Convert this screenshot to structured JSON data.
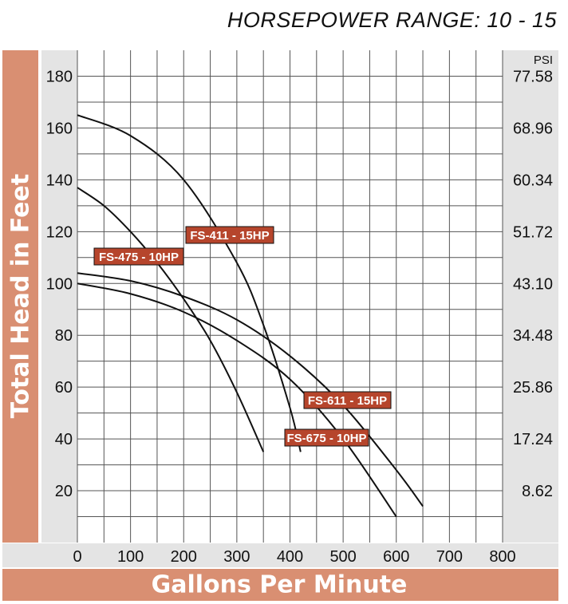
{
  "chart_data": {
    "type": "line",
    "title": "HORSEPOWER RANGE: 10 - 15",
    "xlabel": "Gallons Per Minute",
    "ylabel": "Total Head in Feet",
    "y2label": "PSI",
    "xlim": [
      0,
      800
    ],
    "ylim": [
      0,
      190
    ],
    "xticks": [
      0,
      100,
      200,
      300,
      400,
      500,
      600,
      700,
      800
    ],
    "yticks": [
      20,
      40,
      60,
      80,
      100,
      120,
      140,
      160,
      180
    ],
    "y2ticks": [
      "8.62",
      "17.24",
      "25.86",
      "34.48",
      "43.10",
      "51.72",
      "60.34",
      "68.96",
      "77.58"
    ],
    "grid": true,
    "series": [
      {
        "name": "FS-475 - 10HP",
        "x": [
          0,
          50,
          100,
          150,
          200,
          250,
          300,
          350
        ],
        "y": [
          137,
          130,
          120,
          108,
          94,
          78,
          58,
          35
        ]
      },
      {
        "name": "FS-411 - 15HP",
        "x": [
          0,
          100,
          200,
          300,
          350,
          400,
          420
        ],
        "y": [
          165,
          157,
          140,
          108,
          84,
          52,
          35
        ]
      },
      {
        "name": "FS-611 - 15HP",
        "x": [
          0,
          100,
          200,
          300,
          400,
          500,
          600,
          650
        ],
        "y": [
          104,
          101,
          95,
          86,
          72,
          53,
          28,
          14
        ]
      },
      {
        "name": "FS-675 - 10HP",
        "x": [
          0,
          100,
          200,
          300,
          400,
          500,
          600
        ],
        "y": [
          100,
          96,
          89,
          78,
          63,
          40,
          10
        ]
      }
    ]
  }
}
